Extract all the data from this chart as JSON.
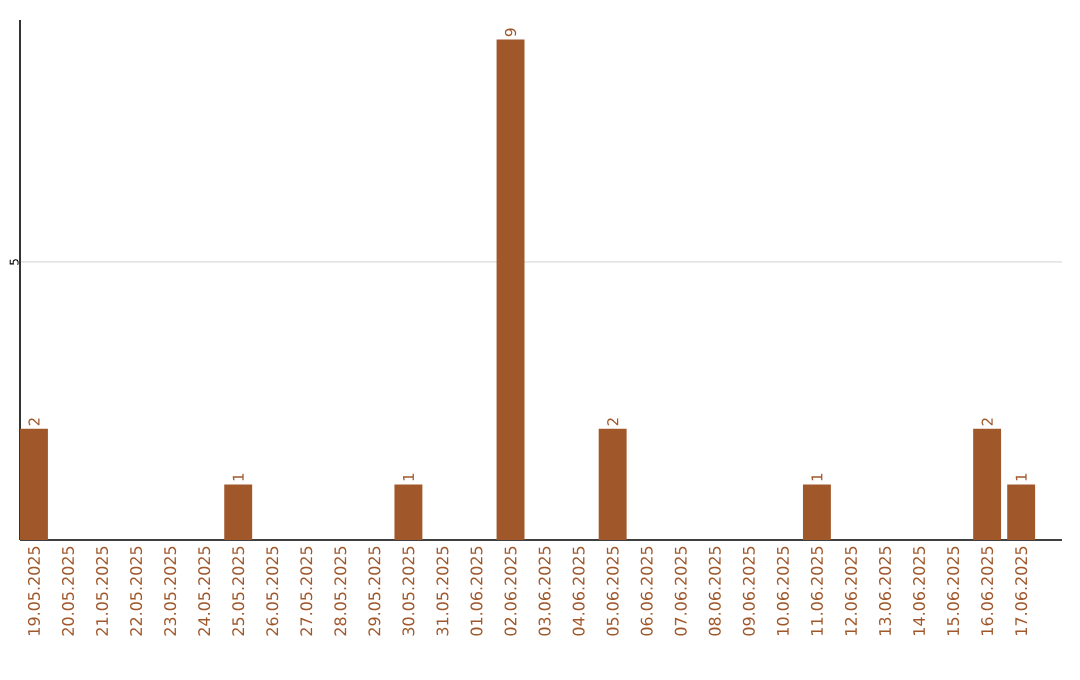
{
  "chart_data": {
    "type": "bar",
    "categories": [
      "19.05.2025",
      "20.05.2025",
      "21.05.2025",
      "22.05.2025",
      "23.05.2025",
      "24.05.2025",
      "25.05.2025",
      "26.05.2025",
      "27.05.2025",
      "28.05.2025",
      "29.05.2025",
      "30.05.2025",
      "31.05.2025",
      "01.06.2025",
      "02.06.2025",
      "03.06.2025",
      "04.06.2025",
      "05.06.2025",
      "06.06.2025",
      "07.06.2025",
      "08.06.2025",
      "09.06.2025",
      "10.06.2025",
      "11.06.2025",
      "12.06.2025",
      "13.06.2025",
      "14.06.2025",
      "15.06.2025",
      "16.06.2025",
      "17.06.2025"
    ],
    "values": [
      2,
      0,
      0,
      0,
      0,
      0,
      1,
      0,
      0,
      0,
      0,
      1,
      0,
      0,
      9,
      0,
      0,
      2,
      0,
      0,
      0,
      0,
      0,
      1,
      0,
      0,
      0,
      0,
      2,
      1
    ],
    "value_labels": [
      "2",
      null,
      null,
      null,
      null,
      null,
      "1",
      null,
      null,
      null,
      null,
      "1",
      null,
      null,
      "9",
      null,
      null,
      "2",
      null,
      null,
      null,
      null,
      null,
      "1",
      null,
      null,
      null,
      null,
      "2",
      "1"
    ],
    "color": "#a0572a",
    "ylim": [
      0,
      9.35
    ],
    "yticks": [
      5
    ],
    "grid": "y"
  }
}
